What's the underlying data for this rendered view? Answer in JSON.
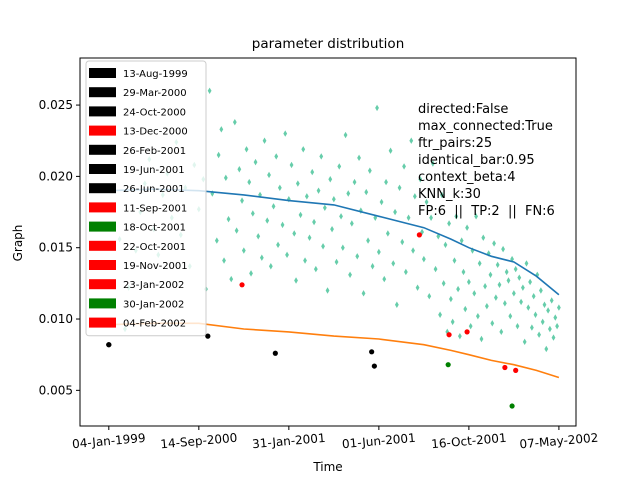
{
  "chart_data": {
    "type": "scatter",
    "title": "parameter distribution",
    "xlabel": "Time",
    "ylabel": "Graph",
    "x_ticks": [
      "04-Jan-1999",
      "14-Sep-2000",
      "31-Jan-2001",
      "01-Jun-2001",
      "16-Oct-2001",
      "07-May-2002"
    ],
    "x_tick_values": [
      0,
      1,
      2,
      3,
      4,
      5
    ],
    "xlim": [
      -0.32,
      5.19
    ],
    "y_ticks": [
      "0.005",
      "0.010",
      "0.015",
      "0.020",
      "0.025"
    ],
    "y_tick_values": [
      0.005,
      0.01,
      0.015,
      0.02,
      0.025
    ],
    "ylim": [
      0.0025,
      0.0283
    ],
    "grid": false,
    "legend_placement": "upper-left",
    "annotation_lines": [
      "directed:False",
      "max_connected:True",
      "ftr_pairs:25",
      "identical_bar:0.95",
      "context_beta:4",
      "KNN_k:30",
      "FP:6  ||  TP:2  ||  FN:6"
    ],
    "colors": {
      "scatter": "#66cdaa",
      "upper_line": "#1f77b4",
      "lower_line": "#ff7f0e",
      "black": "#000000",
      "red": "#ff0000",
      "green": "#008000"
    },
    "events": [
      {
        "label": "13-Aug-1999",
        "color": "black",
        "x": 0.0,
        "y": 0.0082
      },
      {
        "label": "29-Mar-2000",
        "color": "black",
        "x": 0.0,
        "y": 0.0082
      },
      {
        "label": "24-Oct-2000",
        "color": "black",
        "x": 1.1,
        "y": 0.0088
      },
      {
        "label": "13-Dec-2000",
        "color": "red",
        "x": 1.48,
        "y": 0.0124
      },
      {
        "label": "26-Feb-2001",
        "color": "black",
        "x": 1.85,
        "y": 0.0076
      },
      {
        "label": "19-Jun-2001",
        "color": "black",
        "x": 2.92,
        "y": 0.0077
      },
      {
        "label": "26-Jun-2001",
        "color": "black",
        "x": 2.95,
        "y": 0.0067
      },
      {
        "label": "11-Sep-2001",
        "color": "red",
        "x": 3.45,
        "y": 0.0159
      },
      {
        "label": "18-Oct-2001",
        "color": "green",
        "x": 3.77,
        "y": 0.0068
      },
      {
        "label": "22-Oct-2001",
        "color": "red",
        "x": 3.78,
        "y": 0.0089
      },
      {
        "label": "19-Nov-2001",
        "color": "red",
        "x": 3.98,
        "y": 0.0091
      },
      {
        "label": "23-Jan-2002",
        "color": "red",
        "x": 4.4,
        "y": 0.0066
      },
      {
        "label": "30-Jan-2002",
        "color": "green",
        "x": 4.48,
        "y": 0.0039
      },
      {
        "label": "04-Feb-2002",
        "color": "red",
        "x": 4.52,
        "y": 0.0064
      }
    ],
    "upper_series": {
      "x": [
        0.0,
        0.5,
        1.0,
        1.5,
        2.0,
        2.5,
        3.0,
        3.5,
        3.8,
        4.0,
        4.25,
        4.5,
        4.75,
        5.0
      ],
      "y": [
        0.019,
        0.0191,
        0.019,
        0.0187,
        0.0183,
        0.018,
        0.0172,
        0.0164,
        0.0156,
        0.015,
        0.0144,
        0.014,
        0.013,
        0.0117
      ]
    },
    "lower_series": {
      "x": [
        0.0,
        0.5,
        1.0,
        1.5,
        2.0,
        2.5,
        3.0,
        3.5,
        3.8,
        4.0,
        4.25,
        4.5,
        4.75,
        5.0
      ],
      "y": [
        0.0096,
        0.0097,
        0.0097,
        0.0093,
        0.0091,
        0.0088,
        0.0086,
        0.0082,
        0.0078,
        0.0075,
        0.0071,
        0.0068,
        0.0064,
        0.0059
      ]
    },
    "scatter_points": [
      [
        0.06,
        0.0178
      ],
      [
        0.12,
        0.0156
      ],
      [
        0.18,
        0.0093
      ],
      [
        0.22,
        0.0122
      ],
      [
        0.3,
        0.0148
      ],
      [
        0.35,
        0.0175
      ],
      [
        0.4,
        0.0195
      ],
      [
        0.45,
        0.0212
      ],
      [
        0.5,
        0.0163
      ],
      [
        0.55,
        0.0145
      ],
      [
        0.6,
        0.0187
      ],
      [
        0.65,
        0.0202
      ],
      [
        0.7,
        0.0171
      ],
      [
        0.75,
        0.0224
      ],
      [
        0.8,
        0.0159
      ],
      [
        0.85,
        0.0192
      ],
      [
        0.9,
        0.0137
      ],
      [
        0.95,
        0.0208
      ],
      [
        1.0,
        0.0177
      ],
      [
        1.05,
        0.0198
      ],
      [
        1.08,
        0.0121
      ],
      [
        1.12,
        0.026
      ],
      [
        1.15,
        0.0188
      ],
      [
        1.2,
        0.0155
      ],
      [
        1.22,
        0.0215
      ],
      [
        1.25,
        0.0233
      ],
      [
        1.28,
        0.0141
      ],
      [
        1.3,
        0.0199
      ],
      [
        1.33,
        0.017
      ],
      [
        1.36,
        0.0128
      ],
      [
        1.4,
        0.0238
      ],
      [
        1.42,
        0.0162
      ],
      [
        1.45,
        0.0205
      ],
      [
        1.48,
        0.0183
      ],
      [
        1.5,
        0.0148
      ],
      [
        1.53,
        0.0219
      ],
      [
        1.56,
        0.0196
      ],
      [
        1.58,
        0.0132
      ],
      [
        1.6,
        0.0174
      ],
      [
        1.63,
        0.021
      ],
      [
        1.66,
        0.0158
      ],
      [
        1.68,
        0.0187
      ],
      [
        1.7,
        0.0143
      ],
      [
        1.73,
        0.0225
      ],
      [
        1.76,
        0.0169
      ],
      [
        1.78,
        0.0201
      ],
      [
        1.8,
        0.0137
      ],
      [
        1.83,
        0.0179
      ],
      [
        1.86,
        0.0214
      ],
      [
        1.88,
        0.0152
      ],
      [
        1.9,
        0.0192
      ],
      [
        1.93,
        0.0166
      ],
      [
        1.96,
        0.023
      ],
      [
        1.98,
        0.0145
      ],
      [
        2.0,
        0.0184
      ],
      [
        2.03,
        0.0208
      ],
      [
        2.06,
        0.016
      ],
      [
        2.08,
        0.0127
      ],
      [
        2.1,
        0.0195
      ],
      [
        2.13,
        0.0173
      ],
      [
        2.16,
        0.0219
      ],
      [
        2.18,
        0.0141
      ],
      [
        2.2,
        0.0186
      ],
      [
        2.23,
        0.0157
      ],
      [
        2.26,
        0.0203
      ],
      [
        2.28,
        0.0168
      ],
      [
        2.3,
        0.0135
      ],
      [
        2.33,
        0.019
      ],
      [
        2.36,
        0.0214
      ],
      [
        2.38,
        0.0151
      ],
      [
        2.4,
        0.0178
      ],
      [
        2.43,
        0.012
      ],
      [
        2.46,
        0.0198
      ],
      [
        2.48,
        0.0163
      ],
      [
        2.5,
        0.0184
      ],
      [
        2.53,
        0.014
      ],
      [
        2.56,
        0.0207
      ],
      [
        2.58,
        0.0172
      ],
      [
        2.6,
        0.015
      ],
      [
        2.63,
        0.0229
      ],
      [
        2.66,
        0.0188
      ],
      [
        2.68,
        0.0131
      ],
      [
        2.7,
        0.0167
      ],
      [
        2.73,
        0.0196
      ],
      [
        2.76,
        0.0144
      ],
      [
        2.78,
        0.0213
      ],
      [
        2.8,
        0.0176
      ],
      [
        2.83,
        0.0118
      ],
      [
        2.86,
        0.0189
      ],
      [
        2.88,
        0.0155
      ],
      [
        2.9,
        0.0204
      ],
      [
        2.93,
        0.0137
      ],
      [
        2.96,
        0.0171
      ],
      [
        2.98,
        0.0248
      ],
      [
        3.0,
        0.0147
      ],
      [
        3.03,
        0.0182
      ],
      [
        3.06,
        0.0128
      ],
      [
        3.08,
        0.0196
      ],
      [
        3.1,
        0.016
      ],
      [
        3.13,
        0.0218
      ],
      [
        3.16,
        0.0139
      ],
      [
        3.18,
        0.0175
      ],
      [
        3.2,
        0.011
      ],
      [
        3.23,
        0.0192
      ],
      [
        3.26,
        0.0154
      ],
      [
        3.28,
        0.0207
      ],
      [
        3.3,
        0.0133
      ],
      [
        3.33,
        0.0171
      ],
      [
        3.36,
        0.0225
      ],
      [
        3.38,
        0.0148
      ],
      [
        3.4,
        0.0186
      ],
      [
        3.43,
        0.0122
      ],
      [
        3.46,
        0.0198
      ],
      [
        3.48,
        0.0161
      ],
      [
        3.5,
        0.0142
      ],
      [
        3.53,
        0.0182
      ],
      [
        3.56,
        0.0116
      ],
      [
        3.58,
        0.0171
      ],
      [
        3.6,
        0.0209
      ],
      [
        3.63,
        0.0135
      ],
      [
        3.66,
        0.0158
      ],
      [
        3.68,
        0.0103
      ],
      [
        3.7,
        0.0187
      ],
      [
        3.72,
        0.0125
      ],
      [
        3.74,
        0.0152
      ],
      [
        3.76,
        0.0091
      ],
      [
        3.78,
        0.0167
      ],
      [
        3.8,
        0.0114
      ],
      [
        3.82,
        0.0098
      ],
      [
        3.84,
        0.0141
      ],
      [
        3.86,
        0.0172
      ],
      [
        3.88,
        0.0121
      ],
      [
        3.9,
        0.0088
      ],
      [
        3.92,
        0.0155
      ],
      [
        3.94,
        0.0133
      ],
      [
        3.96,
        0.0107
      ],
      [
        3.98,
        0.0164
      ],
      [
        4.0,
        0.0126
      ],
      [
        4.02,
        0.0095
      ],
      [
        4.04,
        0.0148
      ],
      [
        4.06,
        0.0118
      ],
      [
        4.08,
        0.0172
      ],
      [
        4.1,
        0.0102
      ],
      [
        4.12,
        0.0139
      ],
      [
        4.14,
        0.0086
      ],
      [
        4.16,
        0.0157
      ],
      [
        4.18,
        0.0123
      ],
      [
        4.2,
        0.0109
      ],
      [
        4.22,
        0.0146
      ],
      [
        4.24,
        0.0131
      ],
      [
        4.26,
        0.0097
      ],
      [
        4.28,
        0.0153
      ],
      [
        4.3,
        0.0115
      ],
      [
        4.32,
        0.0138
      ],
      [
        4.34,
        0.0124
      ],
      [
        4.36,
        0.0091
      ],
      [
        4.38,
        0.0149
      ],
      [
        4.4,
        0.0111
      ],
      [
        4.42,
        0.0133
      ],
      [
        4.44,
        0.0127
      ],
      [
        4.46,
        0.0102
      ],
      [
        4.48,
        0.0142
      ],
      [
        4.5,
        0.0118
      ],
      [
        4.52,
        0.0135
      ],
      [
        4.54,
        0.0095
      ],
      [
        4.56,
        0.0129
      ],
      [
        4.58,
        0.0112
      ],
      [
        4.6,
        0.0122
      ],
      [
        4.62,
        0.0084
      ],
      [
        4.64,
        0.0139
      ],
      [
        4.66,
        0.0108
      ],
      [
        4.68,
        0.0126
      ],
      [
        4.7,
        0.0094
      ],
      [
        4.72,
        0.0116
      ],
      [
        4.74,
        0.0103
      ],
      [
        4.76,
        0.0131
      ],
      [
        4.78,
        0.0089
      ],
      [
        4.8,
        0.012
      ],
      [
        4.82,
        0.0098
      ],
      [
        4.84,
        0.011
      ],
      [
        4.86,
        0.0079
      ],
      [
        4.88,
        0.0106
      ],
      [
        4.9,
        0.0093
      ],
      [
        4.92,
        0.0113
      ],
      [
        4.94,
        0.0087
      ],
      [
        4.96,
        0.0101
      ],
      [
        4.98,
        0.0095
      ],
      [
        5.0,
        0.0108
      ]
    ]
  }
}
